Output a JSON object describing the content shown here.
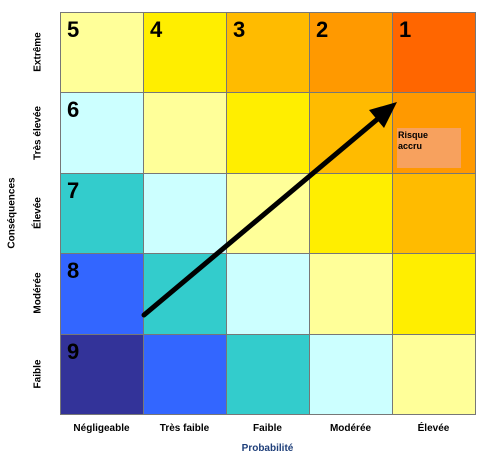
{
  "axes": {
    "x_title": "Probabilité",
    "y_title": "Conséquences"
  },
  "columns": [
    "Négligeable",
    "Très  faible",
    "Faible",
    "Modérée",
    "Élevée"
  ],
  "rows": [
    "Extrême",
    "Très élevée",
    "Élevée",
    "Modérée",
    "Faible"
  ],
  "cells": [
    [
      {
        "num": "5",
        "color": "#ffff99"
      },
      {
        "num": "4",
        "color": "#ffee00"
      },
      {
        "num": "3",
        "color": "#ffbb00"
      },
      {
        "num": "2",
        "color": "#ff9900"
      },
      {
        "num": "1",
        "color": "#ff6600"
      }
    ],
    [
      {
        "num": "6",
        "color": "#ccffff"
      },
      {
        "num": "",
        "color": "#ffff99"
      },
      {
        "num": "",
        "color": "#ffee00"
      },
      {
        "num": "",
        "color": "#ffbb00"
      },
      {
        "num": "",
        "color": "#ff9900"
      }
    ],
    [
      {
        "num": "7",
        "color": "#33cccc"
      },
      {
        "num": "",
        "color": "#ccffff"
      },
      {
        "num": "",
        "color": "#ffff99"
      },
      {
        "num": "",
        "color": "#ffee00"
      },
      {
        "num": "",
        "color": "#ffbb00"
      }
    ],
    [
      {
        "num": "8",
        "color": "#3366ff"
      },
      {
        "num": "",
        "color": "#33cccc"
      },
      {
        "num": "",
        "color": "#ccffff"
      },
      {
        "num": "",
        "color": "#ffff99"
      },
      {
        "num": "",
        "color": "#ffee00"
      }
    ],
    [
      {
        "num": "9",
        "color": "#333399"
      },
      {
        "num": "",
        "color": "#3366ff"
      },
      {
        "num": "",
        "color": "#33cccc"
      },
      {
        "num": "",
        "color": "#ccffff"
      },
      {
        "num": "",
        "color": "#ffff99"
      }
    ]
  ],
  "annotation": {
    "line1": "Risque",
    "line2": "accru",
    "color": "#f7a15e"
  },
  "arrow_color": "#000000"
}
